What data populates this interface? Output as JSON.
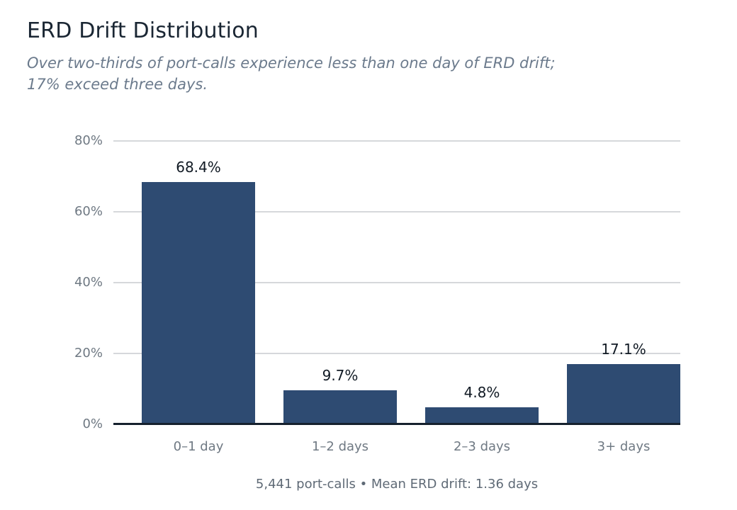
{
  "header": {
    "title": "ERD Drift Distribution",
    "subtitle_lines": [
      "Over two-thirds of port-calls experience less than one day of ERD drift;",
      "17% exceed three days."
    ]
  },
  "chart_data": {
    "type": "bar",
    "title": "ERD Drift Distribution",
    "categories": [
      "0–1 day",
      "1–2 days",
      "2–3 days",
      "3+ days"
    ],
    "values": [
      68.4,
      9.7,
      4.8,
      17.1
    ],
    "value_labels": [
      "68.4%",
      "9.7%",
      "4.8%",
      "17.1%"
    ],
    "xlabel": "",
    "ylabel": "",
    "ylim": [
      0,
      80
    ],
    "yticks": [
      0,
      20,
      40,
      60,
      80
    ],
    "ytick_labels": [
      "0%",
      "20%",
      "40%",
      "60%",
      "80%"
    ],
    "grid": true,
    "legend": false,
    "bar_color": "#2e4b72",
    "axis_line_color": "#16212e",
    "gridline_color": "#d6d8db",
    "footnote": "5,441 port-calls • Mean ERD drift: 1.36 days"
  }
}
